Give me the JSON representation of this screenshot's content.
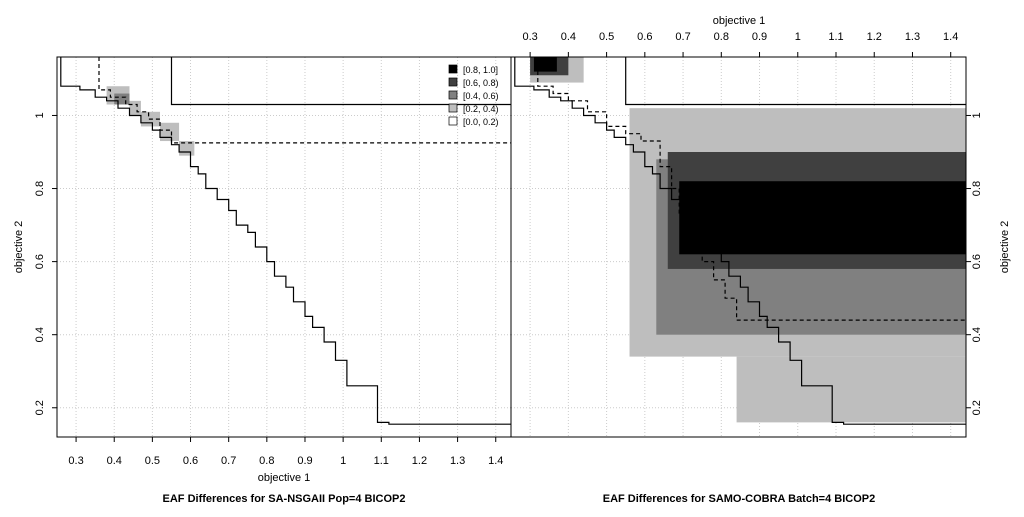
{
  "chart_data": {
    "type": "eaf-difference",
    "legend": {
      "placement": "top-right of left panel",
      "entries": [
        {
          "label": "[0.8, 1.0]",
          "color": "#000000"
        },
        {
          "label": "[0.6, 0.8)",
          "color": "#404040"
        },
        {
          "label": "[0.4, 0.6)",
          "color": "#808080"
        },
        {
          "label": "[0.2, 0.4)",
          "color": "#bebebe"
        },
        {
          "label": "[0.0, 0.2)",
          "color": "#ffffff"
        }
      ]
    },
    "xlabel": "objective 1",
    "ylabel": "objective 2",
    "xlim": [
      0.25,
      1.44
    ],
    "ylim": [
      0.12,
      1.16
    ],
    "xticks": [
      "0.3",
      "0.4",
      "0.5",
      "0.6",
      "0.7",
      "0.8",
      "0.9",
      "1",
      "1.1",
      "1.2",
      "1.3",
      "1.4"
    ],
    "yticks": [
      "0.2",
      "0.4",
      "0.6",
      "0.8",
      "1"
    ],
    "grid": true,
    "panels": [
      {
        "caption": "EAF Differences for SA-NSGAII Pop=4 BICOP2",
        "attainment_best": [
          [
            0.26,
            1.16
          ],
          [
            0.26,
            1.08
          ],
          [
            0.31,
            1.08
          ],
          [
            0.31,
            1.07
          ],
          [
            0.35,
            1.07
          ],
          [
            0.35,
            1.05
          ],
          [
            0.38,
            1.05
          ],
          [
            0.38,
            1.04
          ],
          [
            0.41,
            1.04
          ],
          [
            0.41,
            1.02
          ],
          [
            0.44,
            1.02
          ],
          [
            0.44,
            1.0
          ],
          [
            0.47,
            1.0
          ],
          [
            0.47,
            0.98
          ],
          [
            0.5,
            0.98
          ],
          [
            0.5,
            0.96
          ],
          [
            0.52,
            0.96
          ],
          [
            0.52,
            0.94
          ],
          [
            0.55,
            0.94
          ],
          [
            0.55,
            0.92
          ],
          [
            0.57,
            0.92
          ],
          [
            0.57,
            0.9
          ],
          [
            0.6,
            0.9
          ],
          [
            0.6,
            0.86
          ],
          [
            0.62,
            0.86
          ],
          [
            0.62,
            0.84
          ],
          [
            0.64,
            0.84
          ],
          [
            0.64,
            0.8
          ],
          [
            0.67,
            0.8
          ],
          [
            0.67,
            0.77
          ],
          [
            0.7,
            0.77
          ],
          [
            0.7,
            0.74
          ],
          [
            0.72,
            0.74
          ],
          [
            0.72,
            0.7
          ],
          [
            0.75,
            0.7
          ],
          [
            0.75,
            0.68
          ],
          [
            0.77,
            0.68
          ],
          [
            0.77,
            0.64
          ],
          [
            0.8,
            0.64
          ],
          [
            0.8,
            0.6
          ],
          [
            0.82,
            0.6
          ],
          [
            0.82,
            0.56
          ],
          [
            0.85,
            0.56
          ],
          [
            0.85,
            0.53
          ],
          [
            0.87,
            0.53
          ],
          [
            0.87,
            0.49
          ],
          [
            0.9,
            0.49
          ],
          [
            0.9,
            0.45
          ],
          [
            0.92,
            0.45
          ],
          [
            0.92,
            0.42
          ],
          [
            0.95,
            0.42
          ],
          [
            0.95,
            0.38
          ],
          [
            0.98,
            0.38
          ],
          [
            0.98,
            0.33
          ],
          [
            1.01,
            0.33
          ],
          [
            1.01,
            0.26
          ],
          [
            1.09,
            0.26
          ],
          [
            1.09,
            0.16
          ],
          [
            1.12,
            0.16
          ],
          [
            1.12,
            0.155
          ],
          [
            1.44,
            0.155
          ]
        ],
        "attainment_worst": [
          [
            0.55,
            1.16
          ],
          [
            0.55,
            1.03
          ],
          [
            1.44,
            1.03
          ]
        ],
        "attainment_median": [
          [
            0.36,
            1.16
          ],
          [
            0.36,
            1.07
          ],
          [
            0.39,
            1.07
          ],
          [
            0.39,
            1.05
          ],
          [
            0.43,
            1.05
          ],
          [
            0.43,
            1.03
          ],
          [
            0.46,
            1.03
          ],
          [
            0.46,
            1.01
          ],
          [
            0.49,
            1.01
          ],
          [
            0.49,
            0.99
          ],
          [
            0.52,
            0.99
          ],
          [
            0.52,
            0.96
          ],
          [
            0.55,
            0.96
          ],
          [
            0.55,
            0.925
          ],
          [
            1.44,
            0.925
          ]
        ],
        "regions": [
          {
            "x": [
              0.38,
              0.44
            ],
            "y": [
              1.03,
              1.08
            ],
            "level": 3
          },
          {
            "x": [
              0.44,
              0.47
            ],
            "y": [
              1.0,
              1.04
            ],
            "level": 3
          },
          {
            "x": [
              0.47,
              0.52
            ],
            "y": [
              0.97,
              1.01
            ],
            "level": 3
          },
          {
            "x": [
              0.52,
              0.57
            ],
            "y": [
              0.93,
              0.98
            ],
            "level": 3
          },
          {
            "x": [
              0.57,
              0.61
            ],
            "y": [
              0.89,
              0.93
            ],
            "level": 3
          },
          {
            "x": [
              0.4,
              0.44
            ],
            "y": [
              1.03,
              1.06
            ],
            "level": 2
          }
        ]
      },
      {
        "caption": "EAF Differences for SAMO-COBRA Batch=4 BICOP2",
        "attainment_best": [
          [
            0.26,
            1.16
          ],
          [
            0.26,
            1.08
          ],
          [
            0.31,
            1.08
          ],
          [
            0.31,
            1.07
          ],
          [
            0.35,
            1.07
          ],
          [
            0.35,
            1.05
          ],
          [
            0.38,
            1.05
          ],
          [
            0.38,
            1.04
          ],
          [
            0.41,
            1.04
          ],
          [
            0.41,
            1.02
          ],
          [
            0.44,
            1.02
          ],
          [
            0.44,
            1.0
          ],
          [
            0.47,
            1.0
          ],
          [
            0.47,
            0.98
          ],
          [
            0.5,
            0.98
          ],
          [
            0.5,
            0.96
          ],
          [
            0.52,
            0.96
          ],
          [
            0.52,
            0.94
          ],
          [
            0.55,
            0.94
          ],
          [
            0.55,
            0.92
          ],
          [
            0.57,
            0.92
          ],
          [
            0.57,
            0.9
          ],
          [
            0.6,
            0.9
          ],
          [
            0.6,
            0.86
          ],
          [
            0.62,
            0.86
          ],
          [
            0.62,
            0.84
          ],
          [
            0.64,
            0.84
          ],
          [
            0.64,
            0.8
          ],
          [
            0.67,
            0.8
          ],
          [
            0.67,
            0.77
          ],
          [
            0.7,
            0.77
          ],
          [
            0.7,
            0.74
          ],
          [
            0.72,
            0.74
          ],
          [
            0.72,
            0.7
          ],
          [
            0.75,
            0.7
          ],
          [
            0.75,
            0.68
          ],
          [
            0.77,
            0.68
          ],
          [
            0.77,
            0.64
          ],
          [
            0.8,
            0.64
          ],
          [
            0.8,
            0.6
          ],
          [
            0.82,
            0.6
          ],
          [
            0.82,
            0.56
          ],
          [
            0.85,
            0.56
          ],
          [
            0.85,
            0.53
          ],
          [
            0.87,
            0.53
          ],
          [
            0.87,
            0.49
          ],
          [
            0.9,
            0.49
          ],
          [
            0.9,
            0.45
          ],
          [
            0.92,
            0.45
          ],
          [
            0.92,
            0.42
          ],
          [
            0.95,
            0.42
          ],
          [
            0.95,
            0.38
          ],
          [
            0.98,
            0.38
          ],
          [
            0.98,
            0.33
          ],
          [
            1.01,
            0.33
          ],
          [
            1.01,
            0.26
          ],
          [
            1.09,
            0.26
          ],
          [
            1.09,
            0.16
          ],
          [
            1.12,
            0.16
          ],
          [
            1.12,
            0.155
          ],
          [
            1.44,
            0.155
          ]
        ],
        "attainment_worst": [
          [
            0.55,
            1.16
          ],
          [
            0.55,
            1.03
          ],
          [
            1.44,
            1.03
          ]
        ],
        "attainment_median": [
          [
            0.32,
            1.16
          ],
          [
            0.32,
            1.08
          ],
          [
            0.36,
            1.08
          ],
          [
            0.36,
            1.06
          ],
          [
            0.4,
            1.06
          ],
          [
            0.4,
            1.04
          ],
          [
            0.45,
            1.04
          ],
          [
            0.45,
            1.01
          ],
          [
            0.5,
            1.01
          ],
          [
            0.5,
            0.97
          ],
          [
            0.55,
            0.97
          ],
          [
            0.55,
            0.95
          ],
          [
            0.59,
            0.95
          ],
          [
            0.59,
            0.93
          ],
          [
            0.64,
            0.93
          ],
          [
            0.64,
            0.86
          ],
          [
            0.67,
            0.86
          ],
          [
            0.67,
            0.8
          ],
          [
            0.69,
            0.8
          ],
          [
            0.69,
            0.73
          ],
          [
            0.72,
            0.73
          ],
          [
            0.72,
            0.66
          ],
          [
            0.75,
            0.66
          ],
          [
            0.75,
            0.6
          ],
          [
            0.78,
            0.6
          ],
          [
            0.78,
            0.55
          ],
          [
            0.81,
            0.55
          ],
          [
            0.81,
            0.5
          ],
          [
            0.84,
            0.5
          ],
          [
            0.84,
            0.44
          ],
          [
            1.44,
            0.44
          ]
        ],
        "regions": [
          {
            "x": [
              0.56,
              1.44
            ],
            "y": [
              0.34,
              1.02
            ],
            "level": 3
          },
          {
            "x": [
              0.84,
              1.44
            ],
            "y": [
              0.16,
              0.34
            ],
            "level": 3
          },
          {
            "x": [
              0.63,
              1.44
            ],
            "y": [
              0.4,
              0.88
            ],
            "level": 2
          },
          {
            "x": [
              0.66,
              1.44
            ],
            "y": [
              0.58,
              0.9
            ],
            "level": 1
          },
          {
            "x": [
              0.69,
              1.44
            ],
            "y": [
              0.62,
              0.82
            ],
            "level": 0
          },
          {
            "x": [
              0.3,
              0.44
            ],
            "y": [
              1.09,
              1.16
            ],
            "level": 3
          },
          {
            "x": [
              0.3,
              0.4
            ],
            "y": [
              1.11,
              1.16
            ],
            "level": 1
          },
          {
            "x": [
              0.31,
              0.37
            ],
            "y": [
              1.12,
              1.16
            ],
            "level": 0
          }
        ]
      }
    ]
  }
}
